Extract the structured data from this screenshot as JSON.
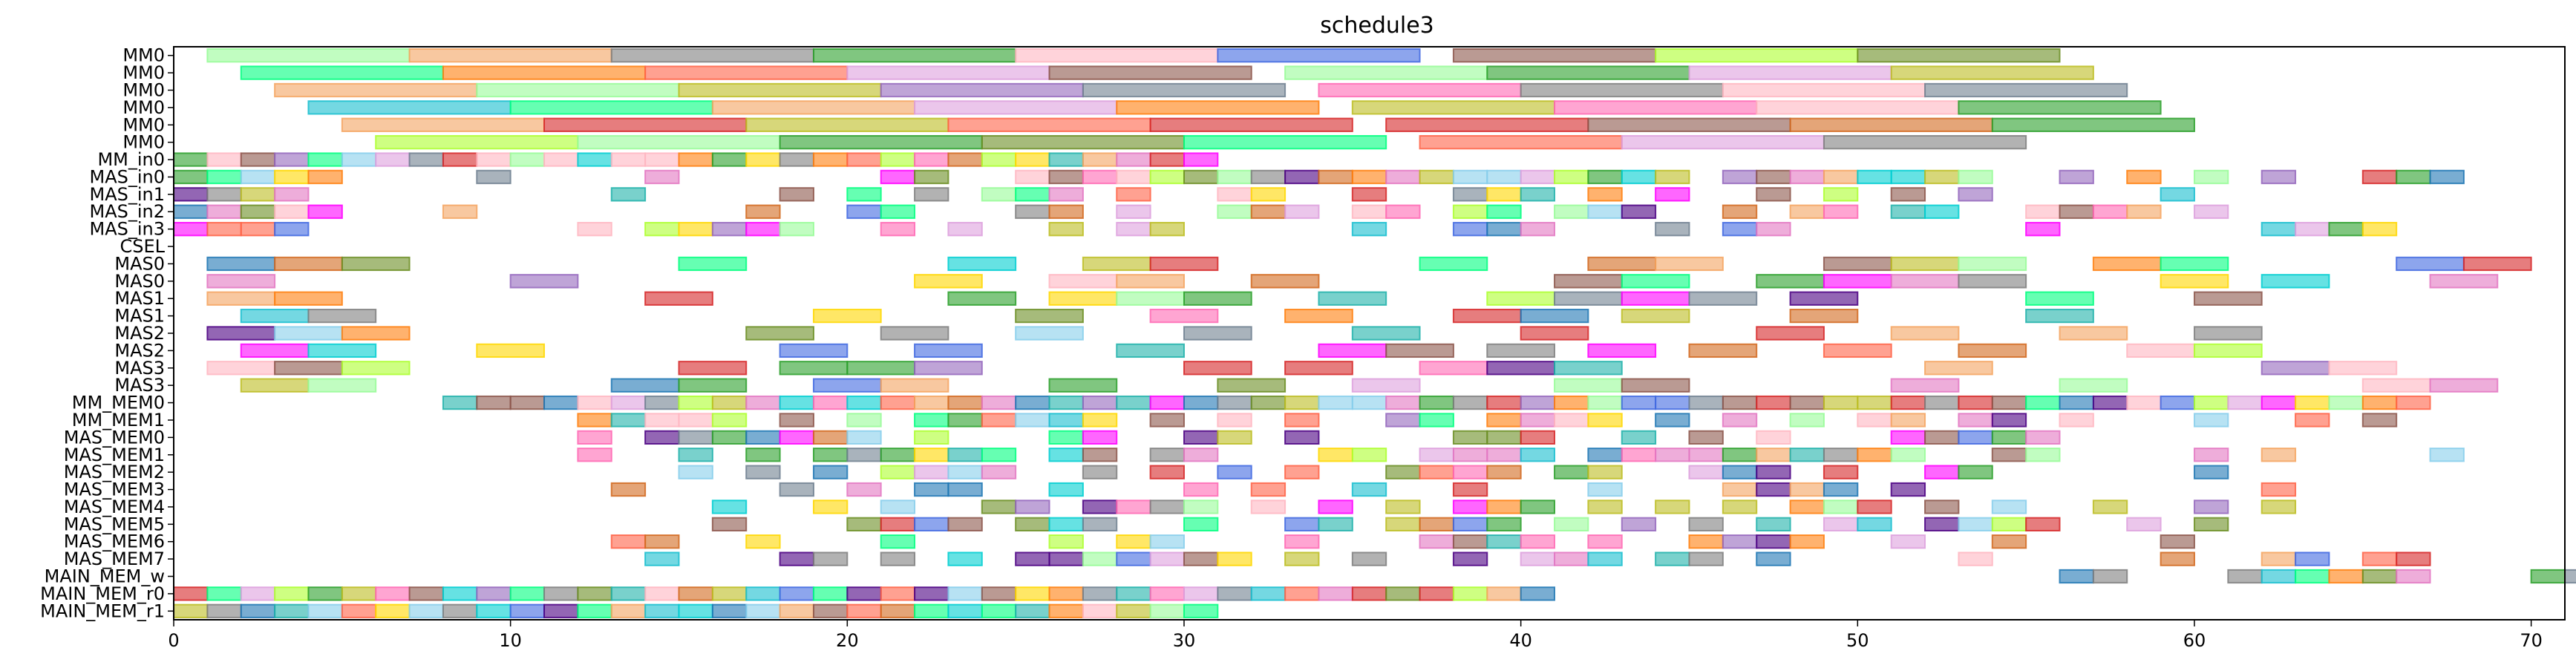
{
  "chart_data": {
    "type": "gantt",
    "title": "schedule3",
    "xlim": [
      0,
      71
    ],
    "xticks": [
      0,
      10,
      20,
      30,
      40,
      50,
      60,
      70
    ],
    "grid": false,
    "rows": [
      "MM0",
      "MM0",
      "MM0",
      "MM0",
      "MM0",
      "MM0",
      "MM_in0",
      "MAS_in0",
      "MAS_in1",
      "MAS_in2",
      "MAS_in3",
      "CSEL",
      "MAS0",
      "MAS0",
      "MAS1",
      "MAS1",
      "MAS2",
      "MAS2",
      "MAS3",
      "MAS3",
      "MM_MEM0",
      "MM_MEM1",
      "MAS_MEM0",
      "MAS_MEM1",
      "MAS_MEM2",
      "MAS_MEM3",
      "MAS_MEM4",
      "MAS_MEM5",
      "MAS_MEM6",
      "MAS_MEM7",
      "MAIN_MEM_w",
      "MAIN_MEM_r0",
      "MAIN_MEM_r1"
    ],
    "seed": 7,
    "edge_opacity": 0.85,
    "fill_opacity": 0.6,
    "palette": [
      "#e377c2",
      "#9467bd",
      "#8c564b",
      "#7f7f7f",
      "#bcbd22",
      "#17becf",
      "#2ca02c",
      "#ff7f0e",
      "#1f77b4",
      "#d62728",
      "#ff00ff",
      "#00ff7f",
      "#ffb6c1",
      "#98fb98",
      "#4169e1",
      "#f4a460",
      "#6b8e23",
      "#20b2aa",
      "#dda0dd",
      "#87ceeb",
      "#ffd700",
      "#ff6347",
      "#4b0082",
      "#00ced1",
      "#adff2f",
      "#d2691e",
      "#708090",
      "#ff69b4"
    ],
    "tasks": [
      {
        "row": 0,
        "start": 1,
        "end": 7
      },
      {
        "row": 0,
        "start": 7,
        "end": 13
      },
      {
        "row": 0,
        "start": 13,
        "end": 19
      },
      {
        "row": 0,
        "start": 19,
        "end": 25
      },
      {
        "row": 0,
        "start": 25,
        "end": 31
      },
      {
        "row": 0,
        "start": 31,
        "end": 37
      },
      {
        "row": 0,
        "start": 38,
        "end": 44
      },
      {
        "row": 0,
        "start": 44,
        "end": 50
      },
      {
        "row": 0,
        "start": 50,
        "end": 56
      },
      {
        "row": 1,
        "start": 2,
        "end": 8
      },
      {
        "row": 1,
        "start": 8,
        "end": 14
      },
      {
        "row": 1,
        "start": 14,
        "end": 20
      },
      {
        "row": 1,
        "start": 20,
        "end": 26
      },
      {
        "row": 1,
        "start": 26,
        "end": 32
      },
      {
        "row": 1,
        "start": 33,
        "end": 39
      },
      {
        "row": 1,
        "start": 39,
        "end": 45
      },
      {
        "row": 1,
        "start": 45,
        "end": 51
      },
      {
        "row": 1,
        "start": 51,
        "end": 57
      },
      {
        "row": 2,
        "start": 3,
        "end": 9
      },
      {
        "row": 2,
        "start": 9,
        "end": 15
      },
      {
        "row": 2,
        "start": 15,
        "end": 21
      },
      {
        "row": 2,
        "start": 21,
        "end": 27
      },
      {
        "row": 2,
        "start": 27,
        "end": 33
      },
      {
        "row": 2,
        "start": 34,
        "end": 40
      },
      {
        "row": 2,
        "start": 40,
        "end": 46
      },
      {
        "row": 2,
        "start": 46,
        "end": 52
      },
      {
        "row": 2,
        "start": 52,
        "end": 58
      },
      {
        "row": 3,
        "start": 4,
        "end": 10
      },
      {
        "row": 3,
        "start": 10,
        "end": 16
      },
      {
        "row": 3,
        "start": 16,
        "end": 22
      },
      {
        "row": 3,
        "start": 22,
        "end": 28
      },
      {
        "row": 3,
        "start": 28,
        "end": 34
      },
      {
        "row": 3,
        "start": 35,
        "end": 41
      },
      {
        "row": 3,
        "start": 41,
        "end": 47
      },
      {
        "row": 3,
        "start": 47,
        "end": 53
      },
      {
        "row": 3,
        "start": 53,
        "end": 59
      },
      {
        "row": 4,
        "start": 5,
        "end": 11
      },
      {
        "row": 4,
        "start": 11,
        "end": 17
      },
      {
        "row": 4,
        "start": 17,
        "end": 23
      },
      {
        "row": 4,
        "start": 23,
        "end": 29
      },
      {
        "row": 4,
        "start": 29,
        "end": 35
      },
      {
        "row": 4,
        "start": 36,
        "end": 42
      },
      {
        "row": 4,
        "start": 42,
        "end": 48
      },
      {
        "row": 4,
        "start": 48,
        "end": 54
      },
      {
        "row": 4,
        "start": 54,
        "end": 60
      },
      {
        "row": 5,
        "start": 6,
        "end": 12
      },
      {
        "row": 5,
        "start": 12,
        "end": 18
      },
      {
        "row": 5,
        "start": 18,
        "end": 24
      },
      {
        "row": 5,
        "start": 24,
        "end": 30
      },
      {
        "row": 5,
        "start": 30,
        "end": 36
      },
      {
        "row": 5,
        "start": 37,
        "end": 43
      },
      {
        "row": 5,
        "start": 43,
        "end": 49
      },
      {
        "row": 5,
        "start": 49,
        "end": 55
      },
      {
        "row": 6,
        "range": [
          0,
          31
        ]
      },
      {
        "row": 7,
        "cells": [
          0,
          1,
          2,
          3,
          4,
          9,
          14,
          21,
          22,
          25,
          26,
          27,
          28,
          29,
          30,
          31,
          32,
          33,
          34,
          35,
          36,
          37,
          38,
          39,
          40,
          41,
          42,
          43,
          44,
          46,
          47,
          48,
          49,
          50,
          51,
          52,
          53,
          56,
          58,
          60,
          62,
          65,
          66,
          67
        ]
      },
      {
        "row": 8,
        "cells": [
          0,
          1,
          2,
          3,
          13,
          18,
          20,
          22,
          24,
          25,
          26,
          28,
          31,
          32,
          35,
          38,
          39,
          40,
          42,
          44,
          47,
          49,
          51,
          53,
          59
        ]
      },
      {
        "row": 9,
        "cells": [
          0,
          1,
          2,
          3,
          4,
          8,
          17,
          20,
          21,
          25,
          26,
          28,
          31,
          32,
          33,
          35,
          36,
          38,
          39,
          41,
          42,
          43,
          46,
          48,
          49,
          51,
          52,
          55,
          56,
          57,
          58,
          60
        ]
      },
      {
        "row": 10,
        "cells": [
          0,
          1,
          2,
          3,
          12,
          14,
          15,
          16,
          17,
          18,
          21,
          23,
          26,
          28,
          29,
          35,
          38,
          39,
          40,
          44,
          46,
          47,
          55,
          62,
          63,
          64,
          65
        ]
      },
      {
        "row": 12,
        "spans": [
          [
            1,
            3
          ],
          [
            3,
            5
          ],
          [
            5,
            7
          ],
          [
            15,
            17
          ],
          [
            23,
            25
          ],
          [
            27,
            29
          ],
          [
            29,
            31
          ],
          [
            37,
            39
          ],
          [
            42,
            44
          ],
          [
            44,
            46
          ],
          [
            49,
            51
          ],
          [
            51,
            53
          ],
          [
            53,
            55
          ],
          [
            57,
            59
          ],
          [
            59,
            61
          ],
          [
            66,
            68
          ],
          [
            68,
            70
          ]
        ]
      },
      {
        "row": 13,
        "spans": [
          [
            1,
            3
          ],
          [
            10,
            12
          ],
          [
            22,
            24
          ],
          [
            26,
            28
          ],
          [
            28,
            30
          ],
          [
            32,
            34
          ],
          [
            41,
            43
          ],
          [
            43,
            45
          ],
          [
            47,
            49
          ],
          [
            49,
            51
          ],
          [
            51,
            53
          ],
          [
            53,
            55
          ],
          [
            59,
            61
          ],
          [
            62,
            64
          ],
          [
            67,
            69
          ]
        ]
      },
      {
        "row": 14,
        "spans": [
          [
            1,
            3
          ],
          [
            3,
            5
          ],
          [
            14,
            16
          ],
          [
            23,
            25
          ],
          [
            26,
            28
          ],
          [
            28,
            30
          ],
          [
            30,
            32
          ],
          [
            34,
            36
          ],
          [
            39,
            41
          ],
          [
            41,
            43
          ],
          [
            43,
            45
          ],
          [
            45,
            47
          ],
          [
            48,
            50
          ],
          [
            55,
            57
          ],
          [
            60,
            62
          ]
        ]
      },
      {
        "row": 15,
        "spans": [
          [
            2,
            4
          ],
          [
            4,
            6
          ],
          [
            19,
            21
          ],
          [
            25,
            27
          ],
          [
            29,
            31
          ],
          [
            33,
            35
          ],
          [
            38,
            40
          ],
          [
            40,
            42
          ],
          [
            43,
            45
          ],
          [
            48,
            50
          ],
          [
            55,
            57
          ]
        ]
      },
      {
        "row": 16,
        "spans": [
          [
            1,
            3
          ],
          [
            3,
            5
          ],
          [
            5,
            7
          ],
          [
            17,
            19
          ],
          [
            21,
            23
          ],
          [
            25,
            27
          ],
          [
            30,
            32
          ],
          [
            35,
            37
          ],
          [
            40,
            42
          ],
          [
            47,
            49
          ],
          [
            51,
            53
          ],
          [
            56,
            58
          ],
          [
            60,
            62
          ]
        ]
      },
      {
        "row": 17,
        "spans": [
          [
            2,
            4
          ],
          [
            4,
            6
          ],
          [
            9,
            11
          ],
          [
            18,
            20
          ],
          [
            22,
            24
          ],
          [
            28,
            30
          ],
          [
            34,
            36
          ],
          [
            36,
            38
          ],
          [
            39,
            41
          ],
          [
            42,
            44
          ],
          [
            45,
            47
          ],
          [
            49,
            51
          ],
          [
            53,
            55
          ],
          [
            58,
            60
          ],
          [
            60,
            62
          ]
        ]
      },
      {
        "row": 18,
        "spans": [
          [
            1,
            3
          ],
          [
            3,
            5
          ],
          [
            5,
            7
          ],
          [
            15,
            17
          ],
          [
            18,
            20
          ],
          [
            20,
            22
          ],
          [
            22,
            24
          ],
          [
            30,
            32
          ],
          [
            33,
            35
          ],
          [
            37,
            39
          ],
          [
            39,
            41
          ],
          [
            41,
            43
          ],
          [
            52,
            54
          ],
          [
            62,
            64
          ],
          [
            64,
            66
          ]
        ]
      },
      {
        "row": 19,
        "spans": [
          [
            2,
            4
          ],
          [
            4,
            6
          ],
          [
            13,
            15
          ],
          [
            15,
            17
          ],
          [
            19,
            21
          ],
          [
            21,
            23
          ],
          [
            26,
            28
          ],
          [
            31,
            33
          ],
          [
            35,
            37
          ],
          [
            41,
            43
          ],
          [
            43,
            45
          ],
          [
            51,
            53
          ],
          [
            56,
            58
          ],
          [
            65,
            67
          ],
          [
            67,
            69
          ]
        ]
      },
      {
        "row": 20,
        "range": [
          8,
          67
        ]
      },
      {
        "row": 21,
        "cells": [
          12,
          13,
          14,
          15,
          16,
          18,
          20,
          22,
          23,
          24,
          25,
          26,
          27,
          29,
          31,
          33,
          36,
          37,
          39,
          40,
          41,
          42,
          44,
          46,
          48,
          50,
          51,
          53,
          54,
          56,
          60,
          63,
          65
        ]
      },
      {
        "row": 22,
        "cells": [
          12,
          14,
          15,
          16,
          17,
          18,
          19,
          20,
          22,
          26,
          27,
          30,
          31,
          33,
          38,
          39,
          40,
          43,
          45,
          47,
          51,
          52,
          53,
          54,
          55
        ]
      },
      {
        "row": 23,
        "cells": [
          12,
          15,
          17,
          19,
          20,
          21,
          22,
          23,
          24,
          26,
          27,
          29,
          30,
          34,
          35,
          37,
          38,
          39,
          40,
          42,
          43,
          44,
          45,
          46,
          47,
          48,
          49,
          50,
          51,
          54,
          55,
          60,
          62,
          67
        ]
      },
      {
        "row": 24,
        "cells": [
          15,
          17,
          19,
          21,
          22,
          23,
          24,
          27,
          29,
          31,
          33,
          36,
          37,
          38,
          39,
          41,
          42,
          45,
          46,
          47,
          49,
          52,
          53,
          60
        ]
      },
      {
        "row": 25,
        "cells": [
          13,
          18,
          20,
          22,
          23,
          26,
          30,
          32,
          35,
          38,
          42,
          46,
          47,
          48,
          49,
          51,
          62
        ]
      },
      {
        "row": 26,
        "cells": [
          16,
          19,
          21,
          24,
          25,
          27,
          28,
          29,
          30,
          32,
          34,
          36,
          38,
          39,
          40,
          42,
          44,
          46,
          48,
          49,
          50,
          52,
          54,
          57,
          60,
          62
        ]
      },
      {
        "row": 27,
        "cells": [
          16,
          20,
          21,
          22,
          23,
          25,
          26,
          27,
          30,
          33,
          34,
          36,
          37,
          38,
          39,
          41,
          43,
          45,
          47,
          49,
          50,
          52,
          53,
          54,
          55,
          58,
          60
        ]
      },
      {
        "row": 28,
        "cells": [
          13,
          14,
          17,
          21,
          26,
          28,
          29,
          33,
          37,
          38,
          39,
          40,
          42,
          45,
          46,
          47,
          48,
          51,
          54,
          59
        ]
      },
      {
        "row": 29,
        "cells": [
          14,
          18,
          19,
          21,
          23,
          25,
          26,
          27,
          28,
          29,
          30,
          31,
          33,
          35,
          38,
          40,
          41,
          42,
          44,
          45,
          47,
          53,
          59,
          62,
          63,
          65,
          66
        ]
      },
      {
        "row": 30,
        "cells": [
          56,
          57,
          61,
          62,
          63,
          64,
          65,
          66,
          70,
          71
        ]
      },
      {
        "row": 31,
        "range": [
          0,
          41
        ]
      },
      {
        "row": 32,
        "range": [
          0,
          31
        ]
      }
    ]
  }
}
